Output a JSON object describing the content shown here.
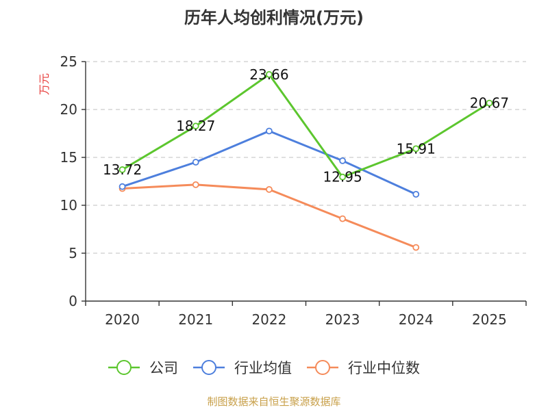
{
  "title": "历年人均创利情况(万元)",
  "source": "制图数据来自恒生聚源数据库",
  "chart_data": {
    "type": "line",
    "title": "历年人均创利情况(万元)",
    "ylabel": "万元",
    "xlabel": "",
    "categories": [
      "2020",
      "2021",
      "2022",
      "2023",
      "2024",
      "2025"
    ],
    "ylim": [
      0,
      25
    ],
    "yticks": [
      0,
      5,
      10,
      15,
      20,
      25
    ],
    "grid": true,
    "legend_position": "bottom",
    "series": [
      {
        "name": "公司",
        "color": "#5cc62e",
        "values": [
          13.72,
          18.27,
          23.66,
          12.95,
          15.91,
          20.67
        ],
        "labels": [
          "13.72",
          "18.27",
          "23.66",
          "12.95",
          "15.91",
          "20.67"
        ]
      },
      {
        "name": "行业均值",
        "color": "#4d7fdd",
        "values": [
          11.95,
          14.5,
          17.75,
          14.65,
          11.15,
          null
        ],
        "labels": []
      },
      {
        "name": "行业中位数",
        "color": "#f58b5a",
        "values": [
          11.75,
          12.15,
          11.65,
          8.6,
          5.6,
          null
        ],
        "labels": []
      }
    ]
  }
}
